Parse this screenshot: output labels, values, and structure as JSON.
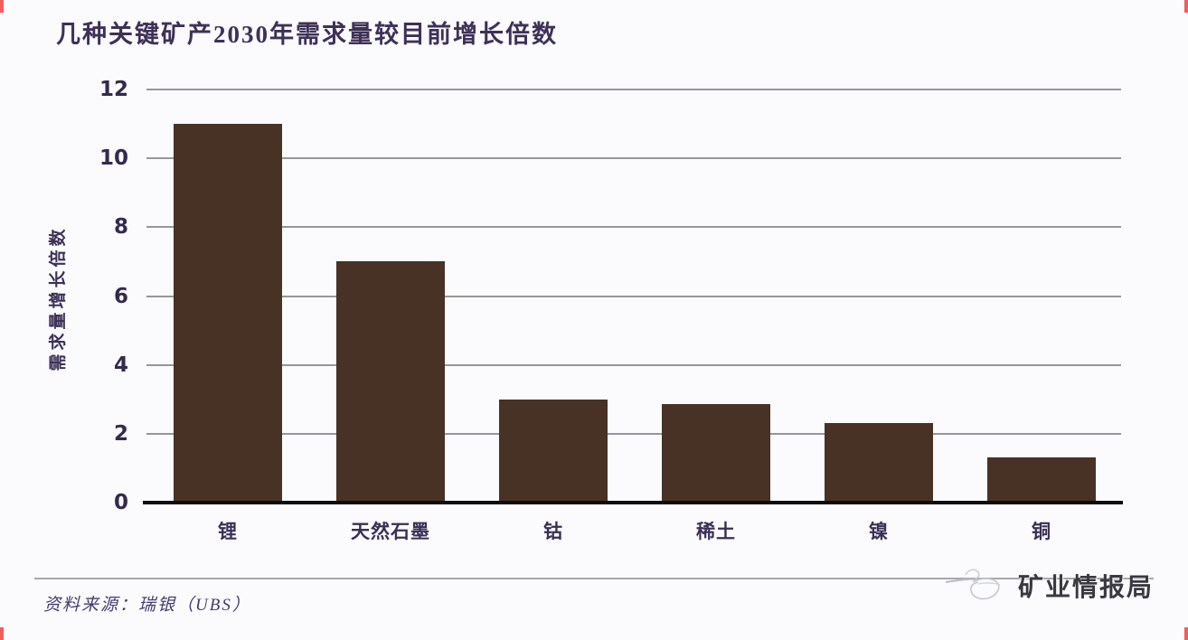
{
  "title": "几种关键矿产2030年需求量较目前增长倍数",
  "source_note": "资料来源：瑞银（UBS）",
  "logo": {
    "text": "矿业情报局"
  },
  "colors": {
    "bar": "#483226",
    "title_text": "#3e3157",
    "axis_text": "#332a4d",
    "gridline": "#97969c",
    "baseline": "#0d0c0c",
    "corner_mark": "#ef4040",
    "background": "#fbfafd"
  },
  "chart_data": {
    "type": "bar",
    "title": "几种关键矿产2030年需求量较目前增长倍数",
    "categories": [
      "锂",
      "天然石墨",
      "钴",
      "稀土",
      "镍",
      "铜"
    ],
    "values": [
      11,
      7,
      3,
      2.85,
      2.3,
      1.3
    ],
    "xlabel": "",
    "ylabel": "需求量增长倍数",
    "ylim": [
      0,
      12
    ],
    "y_ticks": [
      0,
      2,
      4,
      6,
      8,
      10,
      12
    ],
    "grid": "horizontal-only",
    "legend": "none",
    "bar_color": "#483226",
    "source": "资料来源：瑞银（UBS）"
  }
}
